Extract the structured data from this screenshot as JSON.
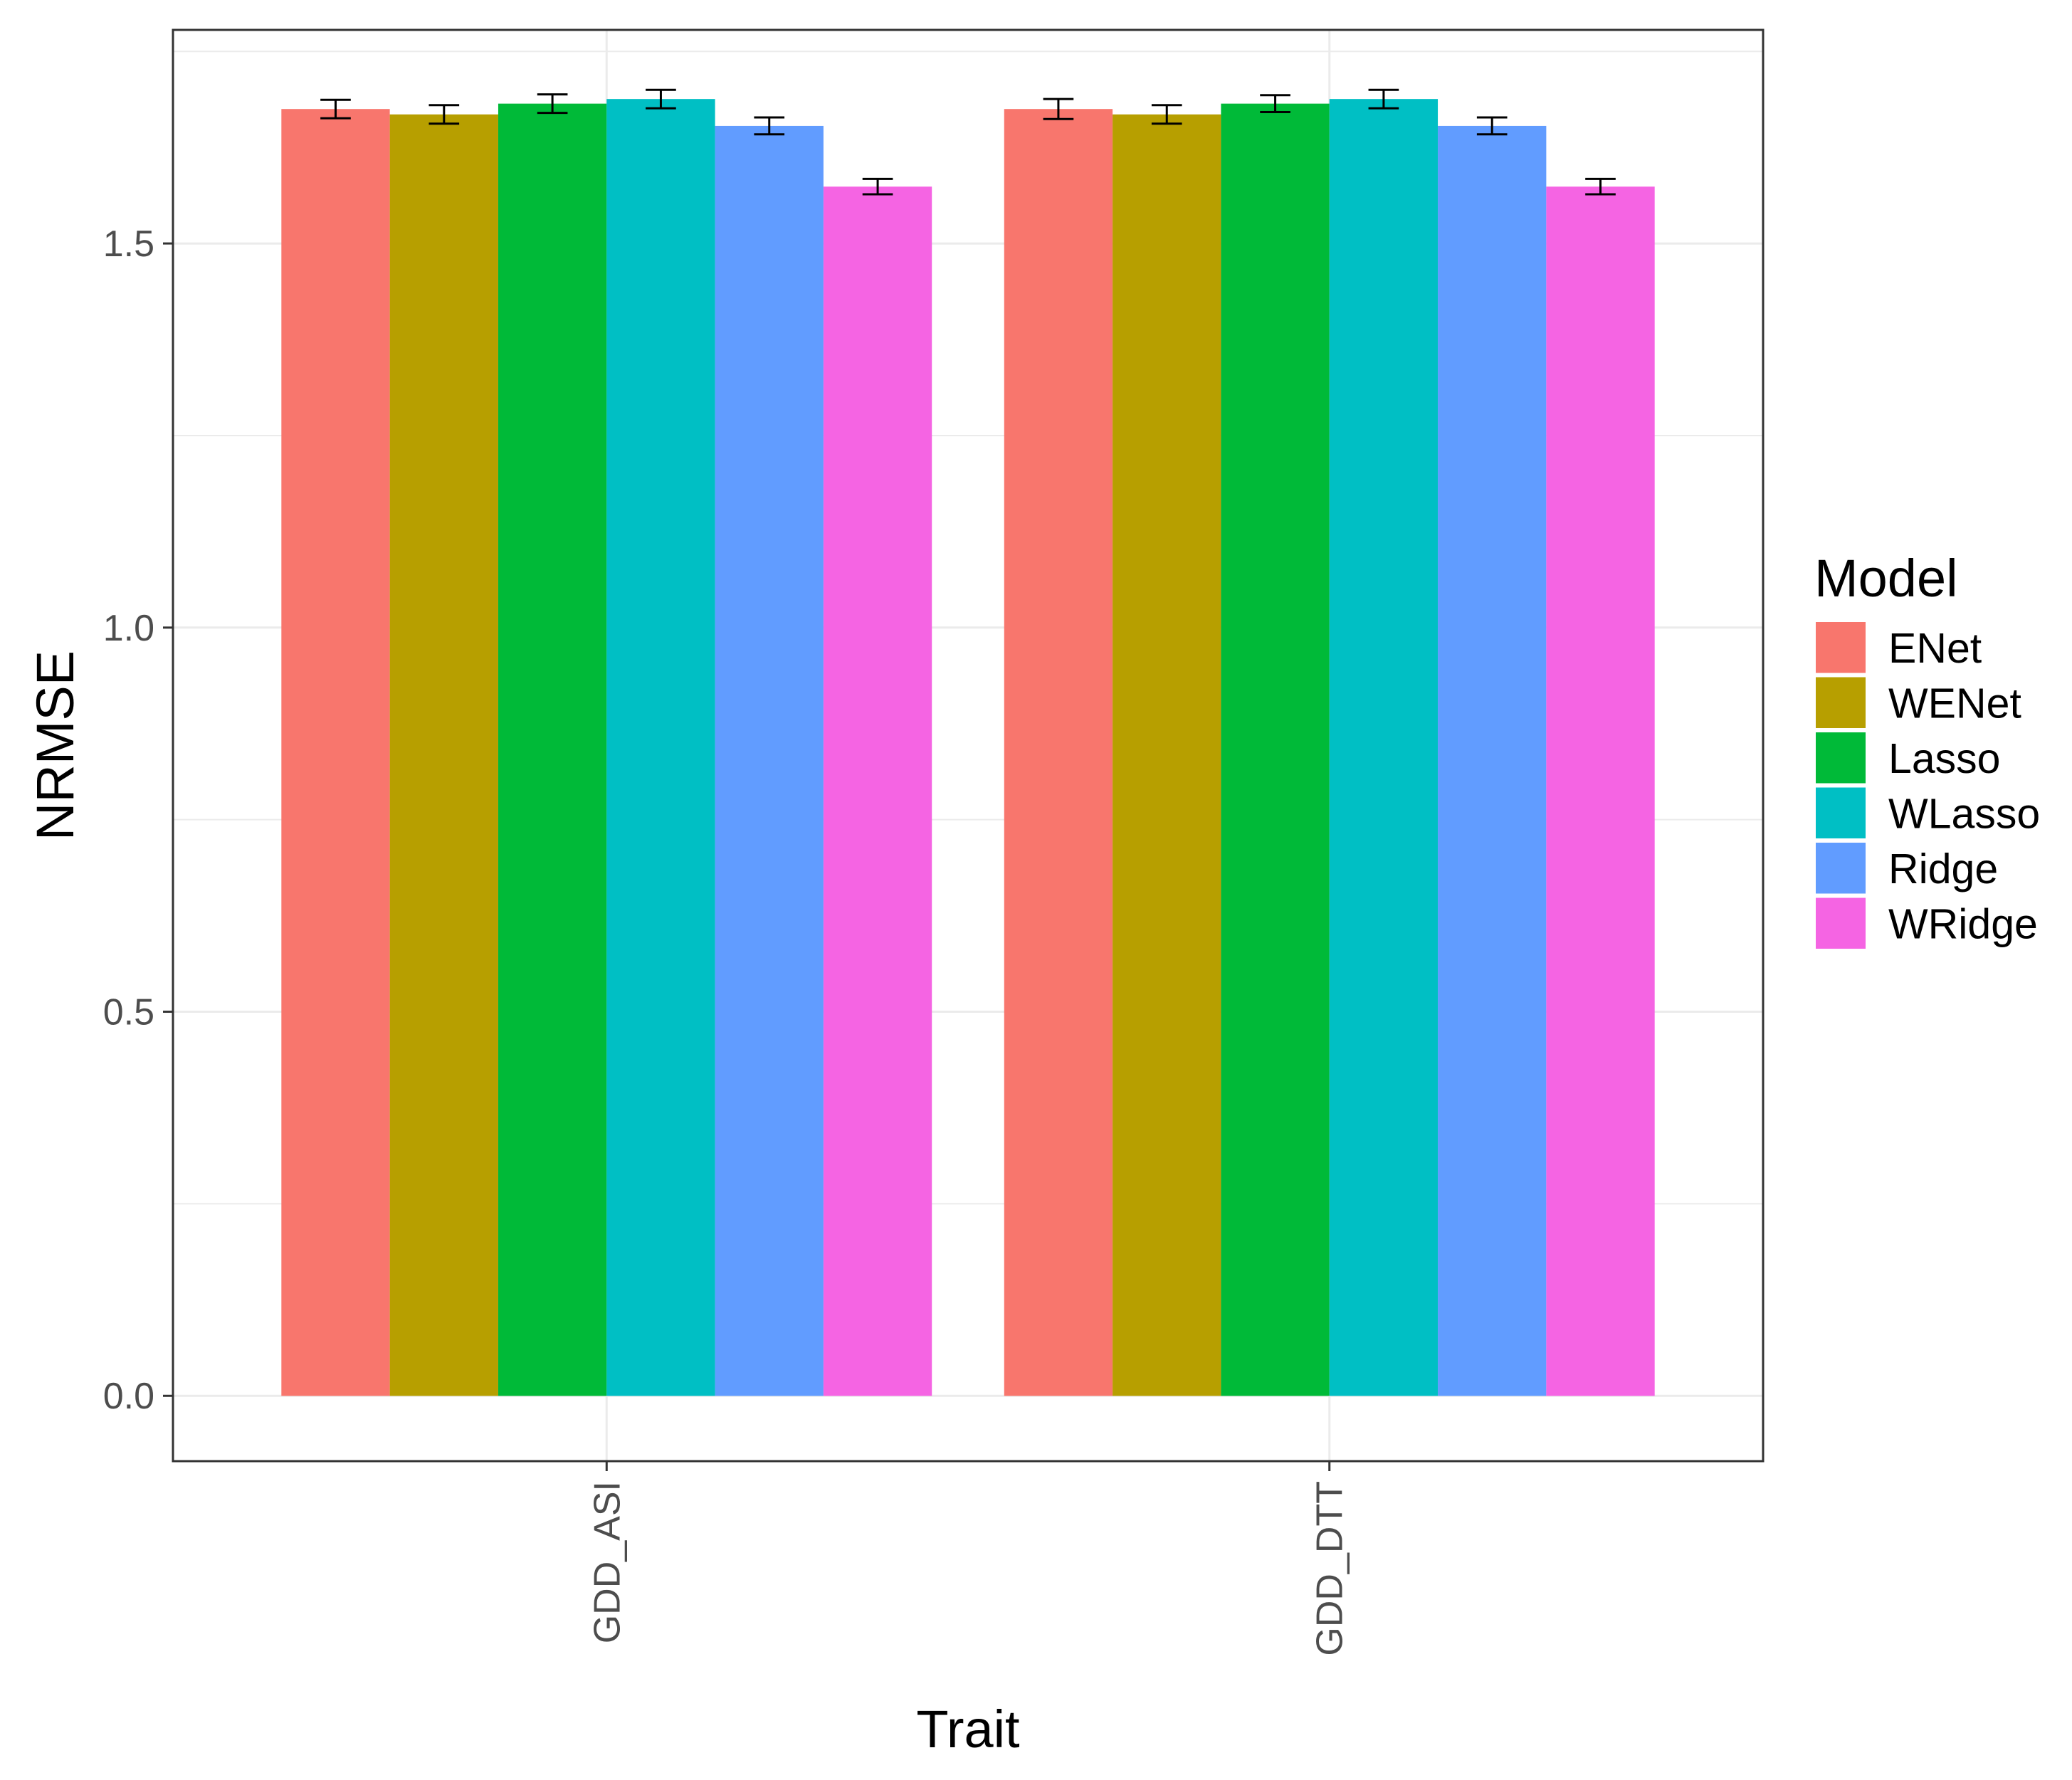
{
  "chart_data": {
    "type": "bar",
    "categories": [
      "GDD_ASI",
      "GDD_DTT"
    ],
    "series": [
      {
        "name": "ENet",
        "color": "#F8766D",
        "values": [
          1.675,
          1.675
        ],
        "error": [
          0.012,
          0.013
        ]
      },
      {
        "name": "WENet",
        "color": "#B79F00",
        "values": [
          1.668,
          1.668
        ],
        "error": [
          0.012,
          0.012
        ]
      },
      {
        "name": "Lasso",
        "color": "#00BA38",
        "values": [
          1.682,
          1.682
        ],
        "error": [
          0.012,
          0.011
        ]
      },
      {
        "name": "WLasso",
        "color": "#00BFC4",
        "values": [
          1.688,
          1.688
        ],
        "error": [
          0.012,
          0.012
        ]
      },
      {
        "name": "Ridge",
        "color": "#619CFF",
        "values": [
          1.653,
          1.653
        ],
        "error": [
          0.011,
          0.011
        ]
      },
      {
        "name": "WRidge",
        "color": "#F564E3",
        "values": [
          1.574,
          1.574
        ],
        "error": [
          0.01,
          0.01
        ]
      }
    ],
    "title": "",
    "xlabel": "Trait",
    "ylabel": "NRMSE",
    "ylim": [
      -0.085,
      1.778
    ],
    "yticks": [
      0.0,
      0.5,
      1.0,
      1.5
    ],
    "ytick_labels": [
      "0.0",
      "0.5",
      "1.0",
      "1.5"
    ],
    "grid": true,
    "legend": {
      "title": "Model",
      "position": "right"
    }
  }
}
